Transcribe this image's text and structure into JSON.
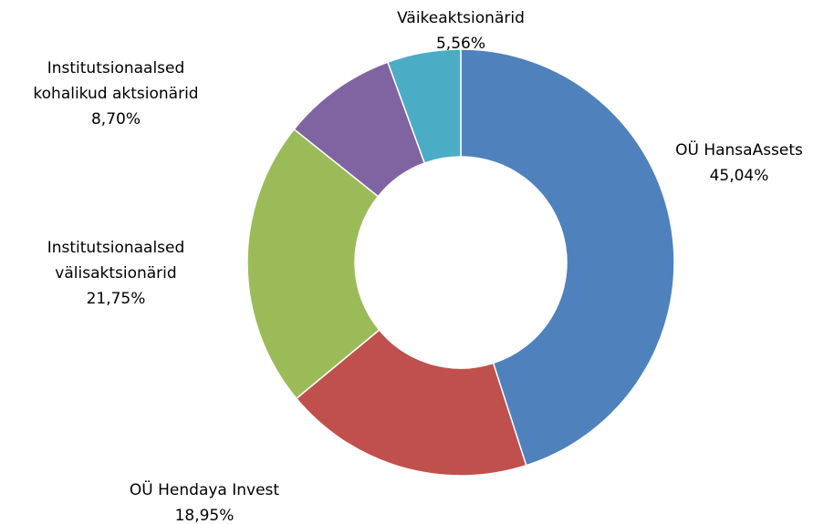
{
  "chart_data": {
    "type": "donut",
    "categories": [
      "OÜ HansaAssets",
      "OÜ Hendaya Invest",
      "Institutsionaalsed välisaktsionärid",
      "Institutsionaalsed kohalikud aktsionärid",
      "Väikeaktsionärid"
    ],
    "values": [
      45.04,
      18.95,
      21.75,
      8.7,
      5.56
    ],
    "value_labels": [
      "45,04%",
      "18,95%",
      "21,75%",
      "8,70%",
      "5,56%"
    ],
    "colors": [
      "#4f81bd",
      "#c0504d",
      "#9bbb59",
      "#8064a2",
      "#4bacc6"
    ]
  }
}
